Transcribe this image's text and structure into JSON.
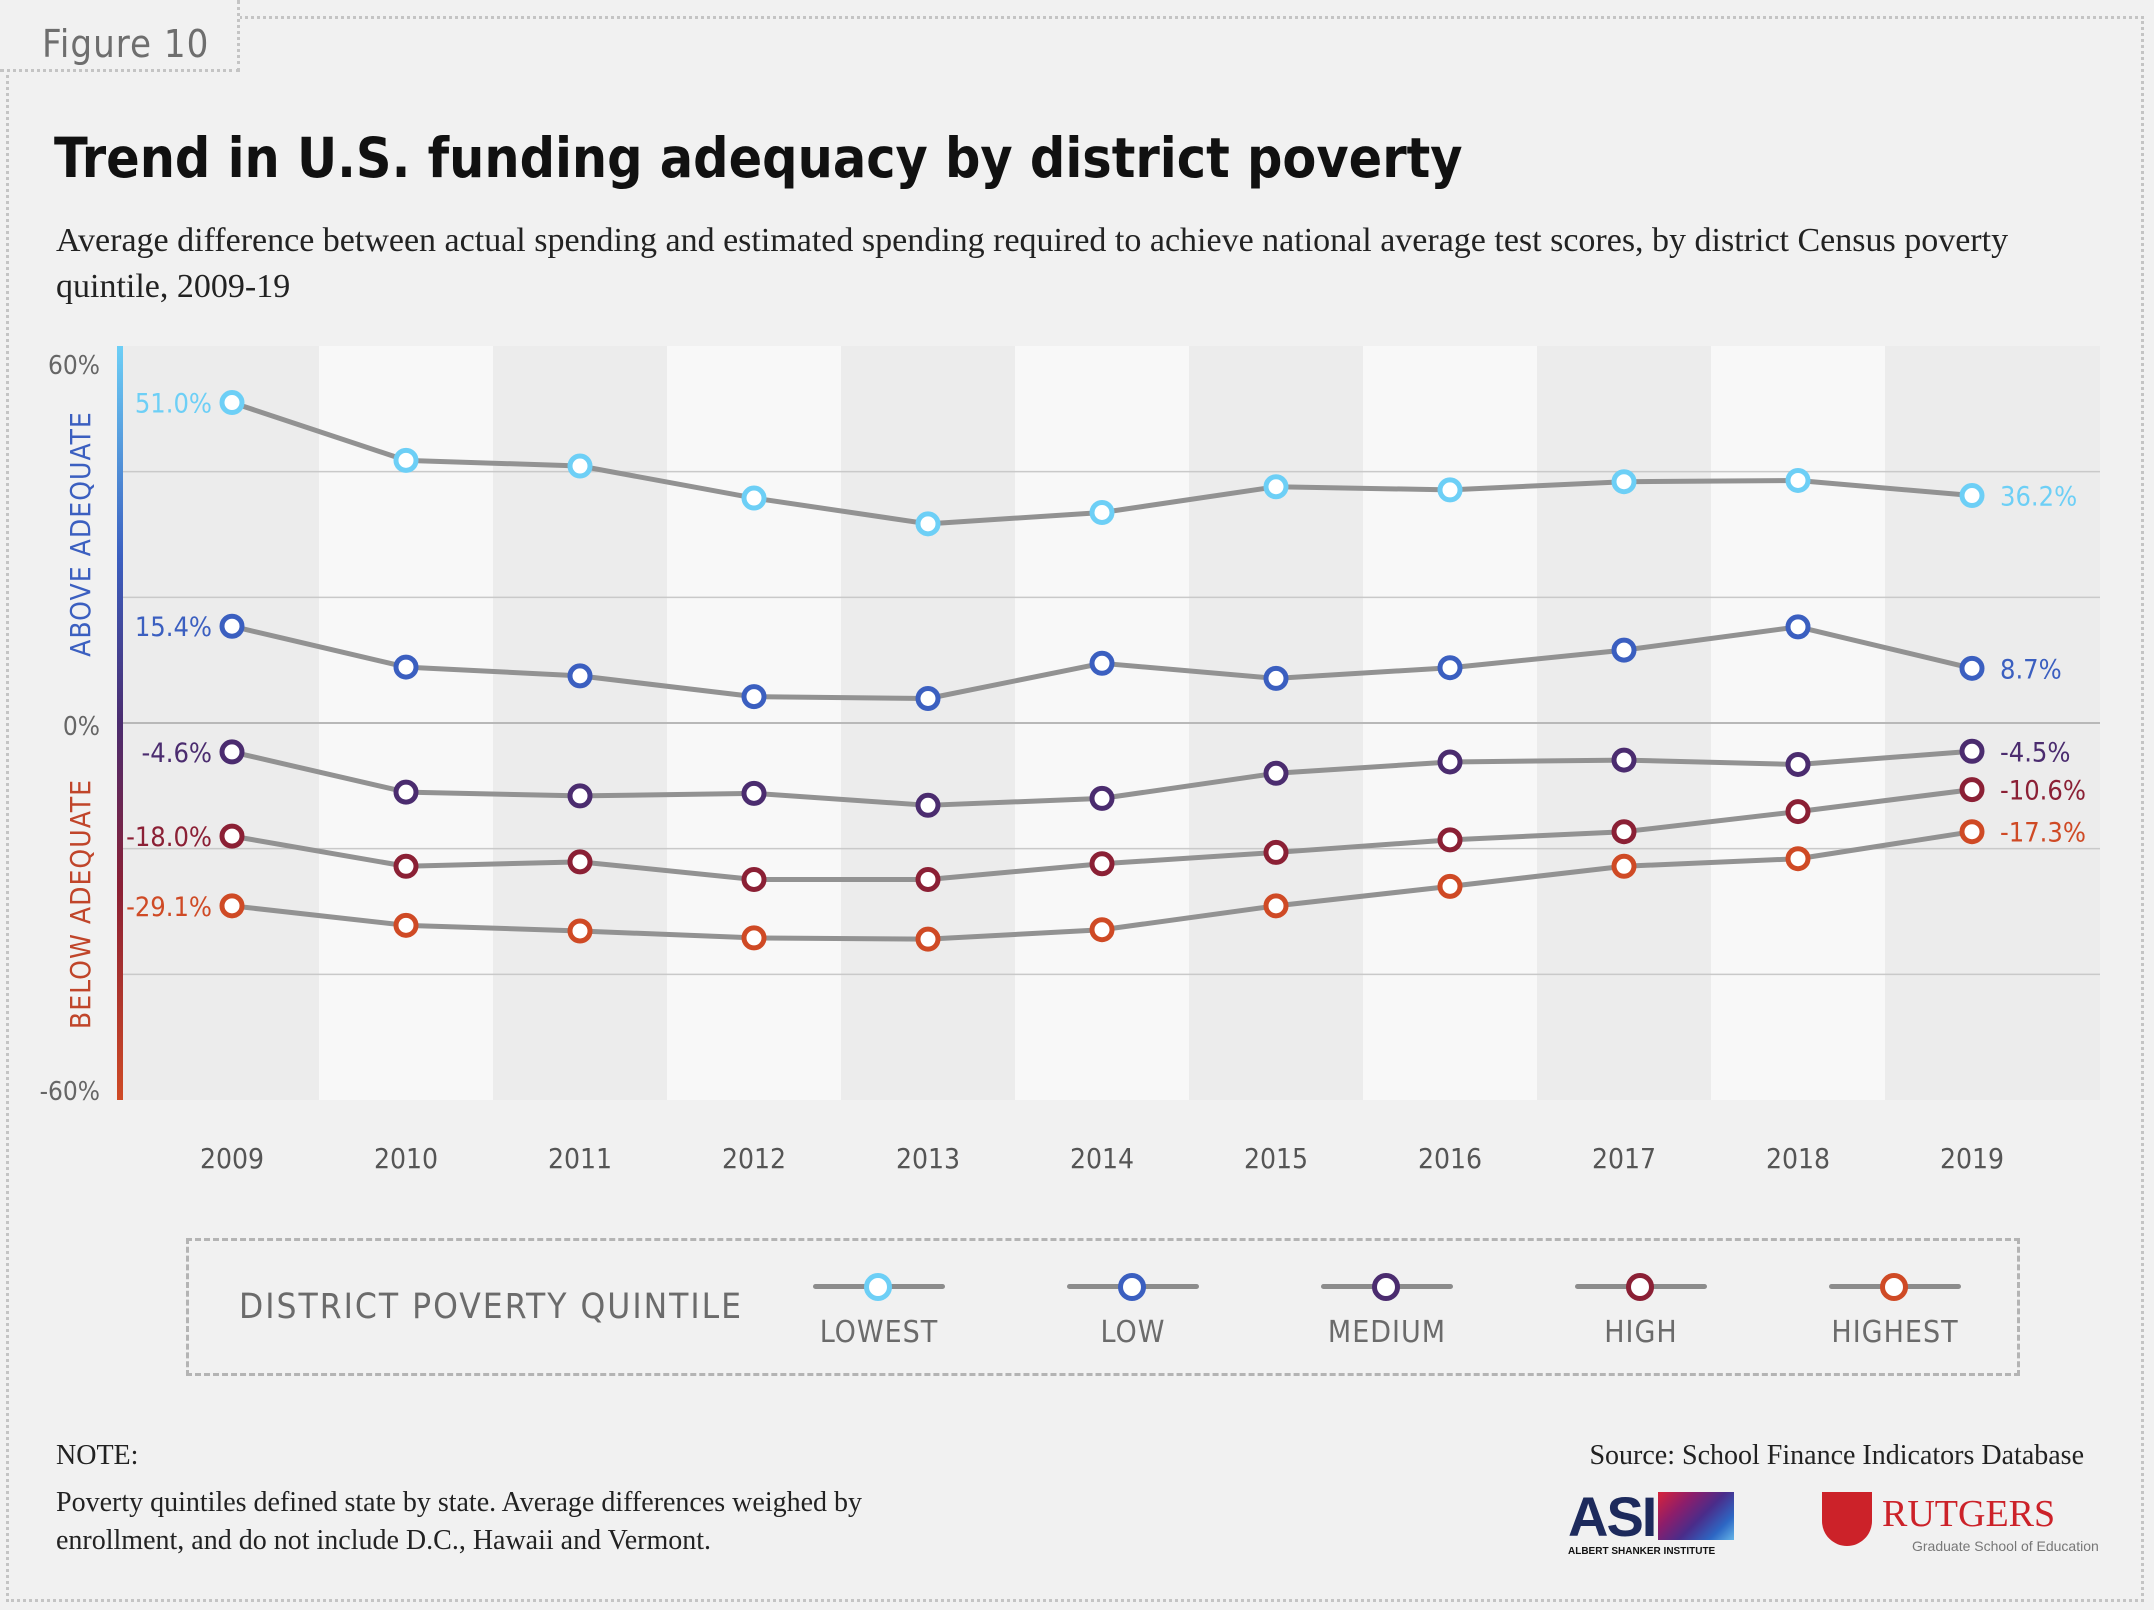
{
  "figure_label": "Figure 10",
  "title": "Trend in U.S. funding adequacy by district poverty",
  "subtitle": "Average difference between actual spending and estimated spending required to achieve national average test scores, by district Census poverty quintile, 2009-19",
  "chart_data": {
    "type": "line",
    "x": [
      "2009",
      "2010",
      "2011",
      "2012",
      "2013",
      "2014",
      "2015",
      "2016",
      "2017",
      "2018",
      "2019"
    ],
    "ylim": [
      -60,
      60
    ],
    "yticks": [
      "60%",
      "0%",
      "-60%"
    ],
    "gridlines": [
      40,
      20,
      0,
      -20,
      -40
    ],
    "y_band_labels": {
      "above": "ABOVE ADEQUATE",
      "below": "BELOW ADEQUATE"
    },
    "series": [
      {
        "name": "LOWEST",
        "color": "#6dcff6",
        "values": [
          51.0,
          41.8,
          40.9,
          35.8,
          31.7,
          33.5,
          37.6,
          37.1,
          38.4,
          38.6,
          36.2
        ],
        "first_label": "51.0%",
        "last_label": "36.2%"
      },
      {
        "name": "LOW",
        "color": "#3b5fc0",
        "values": [
          15.4,
          8.9,
          7.5,
          4.2,
          3.9,
          9.5,
          7.1,
          8.8,
          11.6,
          15.3,
          8.7
        ],
        "first_label": "15.4%",
        "last_label": "8.7%"
      },
      {
        "name": "MEDIUM",
        "color": "#4b2c6f",
        "values": [
          -4.6,
          -11.0,
          -11.6,
          -11.2,
          -13.1,
          -12.0,
          -8.0,
          -6.2,
          -5.9,
          -6.6,
          -4.5
        ],
        "first_label": "-4.6%",
        "last_label": "-4.5%"
      },
      {
        "name": "HIGH",
        "color": "#8b2035",
        "values": [
          -18.0,
          -22.8,
          -22.1,
          -24.9,
          -24.9,
          -22.4,
          -20.6,
          -18.6,
          -17.3,
          -14.1,
          -10.6
        ],
        "first_label": "-18.0%",
        "last_label": "-10.6%"
      },
      {
        "name": "HIGHEST",
        "color": "#cf4a25",
        "values": [
          -29.1,
          -32.2,
          -33.1,
          -34.2,
          -34.4,
          -32.9,
          -29.1,
          -26.0,
          -22.8,
          -21.6,
          -17.3
        ],
        "first_label": "-29.1%",
        "last_label": "-17.3%"
      }
    ]
  },
  "legend": {
    "title": "DISTRICT POVERTY QUINTILE",
    "items": [
      {
        "label": "LOWEST",
        "color": "#6dcff6"
      },
      {
        "label": "LOW",
        "color": "#3b5fc0"
      },
      {
        "label": "MEDIUM",
        "color": "#4b2c6f"
      },
      {
        "label": "HIGH",
        "color": "#8b2035"
      },
      {
        "label": "HIGHEST",
        "color": "#cf4a25"
      }
    ]
  },
  "note": {
    "heading": "NOTE:",
    "text": "Poverty quintiles defined state by state. Average differences weighed by enrollment, and do not include D.C., Hawaii and Vermont."
  },
  "source": "Source:  School Finance Indicators Database",
  "logos": {
    "asi_letters": "ASI",
    "asi_name": "ALBERT SHANKER INSTITUTE",
    "rutgers_word": "RUTGERS",
    "rutgers_sub": "Graduate School of Education"
  }
}
